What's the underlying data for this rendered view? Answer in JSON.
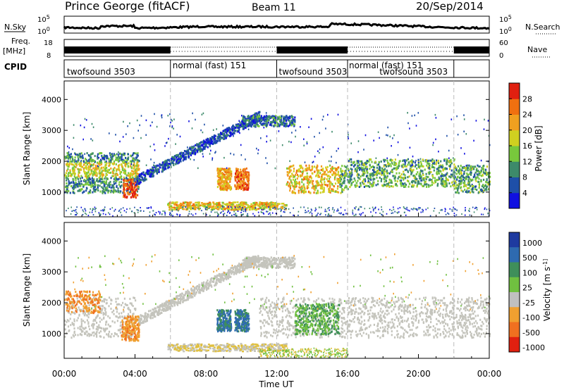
{
  "header": {
    "station": "Prince George (fitACF)",
    "beam": "Beam 11",
    "date": "20/Sep/2014"
  },
  "noise_panel": {
    "left_label": "N.Sky",
    "right_label": "N.Search",
    "left_ticks": [
      "10^5",
      "10^0"
    ],
    "right_ticks": [
      "10^5",
      "10^0"
    ]
  },
  "freq_panel": {
    "left_label_1": "Freq.",
    "left_label_2": "[MHz]",
    "left_ticks": [
      "18",
      "8"
    ],
    "right_label": "Nave",
    "right_ticks": [
      "60",
      "0"
    ]
  },
  "cpid_panel": {
    "label": "CPID",
    "segments": [
      {
        "label": "twofsound 3503",
        "start": 0,
        "end": 6
      },
      {
        "label": "normal (fast) 151",
        "start": 6,
        "end": 12
      },
      {
        "label": "twofsound 3503",
        "start": 12,
        "end": 16
      },
      {
        "label": "normal (fast) 151",
        "start": 16,
        "end": 22
      },
      {
        "label": "twofsound 3503",
        "start": 16,
        "end": 22
      }
    ]
  },
  "chart_data": [
    {
      "type": "heatmap",
      "quantity": "Power",
      "ylabel": "Slant Range [km]",
      "xlabel": "",
      "xlim_hours": [
        0,
        24
      ],
      "ylim_km": [
        200,
        4600
      ],
      "y_ticks": [
        1000,
        2000,
        3000,
        4000
      ],
      "colorbar": {
        "label": "Power [dB]",
        "ticks": [
          "4",
          "8",
          "12",
          "16",
          "20",
          "24",
          "28"
        ],
        "colors": [
          "#1010e0",
          "#1e4fa8",
          "#3d8a6a",
          "#78c83c",
          "#d0d020",
          "#f0a020",
          "#f07010",
          "#e02010"
        ]
      },
      "features": [
        {
          "name": "near-range band 00-04 UT",
          "start_ut": 0,
          "end_ut": 4,
          "range_km": [
            1000,
            2300
          ],
          "power_db": 16
        },
        {
          "name": "enhancement ~03:40 UT",
          "start_ut": 3.3,
          "end_ut": 4.1,
          "range_km": [
            800,
            1500
          ],
          "power_db": 28
        },
        {
          "name": "arc rising 04-11 UT",
          "start_ut": 4,
          "end_ut": 11,
          "range_km": [
            1400,
            3500
          ],
          "power_db": 6
        },
        {
          "name": "patch ~09 UT",
          "start_ut": 8.6,
          "end_ut": 9.4,
          "range_km": [
            1100,
            1800
          ],
          "power_db": 24
        },
        {
          "name": "patch ~10 UT",
          "start_ut": 9.6,
          "end_ut": 10.4,
          "range_km": [
            1100,
            1800
          ],
          "power_db": 26
        },
        {
          "name": "ground scatter 06-12 UT",
          "start_ut": 5.8,
          "end_ut": 12.5,
          "range_km": [
            400,
            700
          ],
          "power_db": 22
        },
        {
          "name": "band 13-24 UT",
          "start_ut": 12.5,
          "end_ut": 24,
          "range_km": [
            900,
            1900
          ],
          "power_db": 14
        }
      ]
    },
    {
      "type": "heatmap",
      "quantity": "Velocity",
      "ylabel": "Slant Range [km]",
      "xlabel": "Time UT",
      "x_ticks": [
        "00:00",
        "04:00",
        "08:00",
        "12:00",
        "16:00",
        "20:00",
        "00:00"
      ],
      "xlim_hours": [
        0,
        24
      ],
      "ylim_km": [
        200,
        4600
      ],
      "y_ticks": [
        1000,
        2000,
        3000,
        4000
      ],
      "colorbar": {
        "label": "Velocity [m s^-1]",
        "ticks": [
          "1000",
          "500",
          "100",
          "25",
          "-25",
          "-100",
          "-500",
          "-1000"
        ],
        "colors": [
          "#1e3aa0",
          "#2e6ab0",
          "#3f8f5a",
          "#70c040",
          "#c0c0c0",
          "#f0a030",
          "#f07020",
          "#e02010"
        ]
      },
      "features": [
        {
          "name": "gray ground-scatter band",
          "start_ut": 0,
          "end_ut": 24,
          "range_km": [
            900,
            2200
          ],
          "velocity_ms": 0
        },
        {
          "name": "negative patch ~03:40 UT",
          "start_ut": 3.2,
          "end_ut": 4.2,
          "range_km": [
            800,
            1600
          ],
          "velocity_ms": -300
        },
        {
          "name": "positive patch ~09 UT",
          "start_ut": 8.6,
          "end_ut": 9.4,
          "range_km": [
            1100,
            1800
          ],
          "velocity_ms": 600
        },
        {
          "name": "positive patch ~10 UT",
          "start_ut": 9.6,
          "end_ut": 10.4,
          "range_km": [
            1100,
            1800
          ],
          "velocity_ms": 600
        },
        {
          "name": "green region 13-15 UT",
          "start_ut": 13,
          "end_ut": 15.5,
          "range_km": [
            1000,
            2000
          ],
          "velocity_ms": 200
        }
      ]
    }
  ]
}
